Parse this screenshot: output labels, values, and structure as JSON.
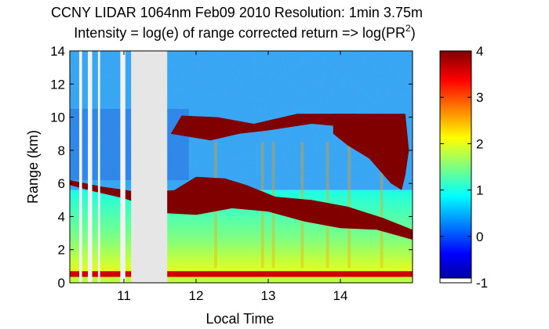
{
  "chart_data": {
    "type": "heatmap",
    "title_line1": "CCNY LIDAR 1064nm Feb09 2010 Resolution: 1min 3.75m",
    "title_line2": "Intensity = log(e) of range corrected return => log(PR",
    "title_line2_sup": "2",
    "title_line2_end": ")",
    "xlabel": "Local Time",
    "ylabel": "Range (km)",
    "xlim": [
      10.25,
      15.0
    ],
    "ylim": [
      0,
      14
    ],
    "xticks": [
      11,
      12,
      13,
      14
    ],
    "yticks": [
      0,
      2,
      4,
      6,
      8,
      10,
      12,
      14
    ],
    "colorbar": {
      "range": [
        -1,
        4
      ],
      "ticks": [
        -1,
        0,
        1,
        2,
        3,
        4
      ],
      "colormap": "jet"
    },
    "no_data_gaps": [
      [
        10.38,
        10.42
      ],
      [
        10.5,
        10.56
      ],
      [
        10.64,
        10.67
      ],
      [
        10.95,
        11.02
      ],
      [
        11.1,
        11.6
      ]
    ],
    "features": [
      {
        "name": "low-level layer",
        "x": [
          10.25,
          15.0
        ],
        "y": [
          0.35,
          0.7
        ],
        "value": 3.6
      },
      {
        "name": "boundary layer aerosol",
        "x": [
          10.25,
          15.0
        ],
        "y": [
          0.7,
          5.2
        ],
        "value": 1.4
      },
      {
        "name": "lower cloud",
        "x": [
          10.25,
          15.0
        ],
        "y_start": [
          5.5,
          6.2
        ],
        "y_end": [
          2.5,
          3.0
        ],
        "value": 4
      },
      {
        "name": "upper cloud",
        "x": [
          11.6,
          14.2
        ],
        "y": [
          8.6,
          10.2
        ],
        "value": 4
      },
      {
        "name": "high cloud",
        "x": [
          13.0,
          14.9
        ],
        "y": [
          5.5,
          10.2
        ],
        "value": 4
      }
    ]
  }
}
